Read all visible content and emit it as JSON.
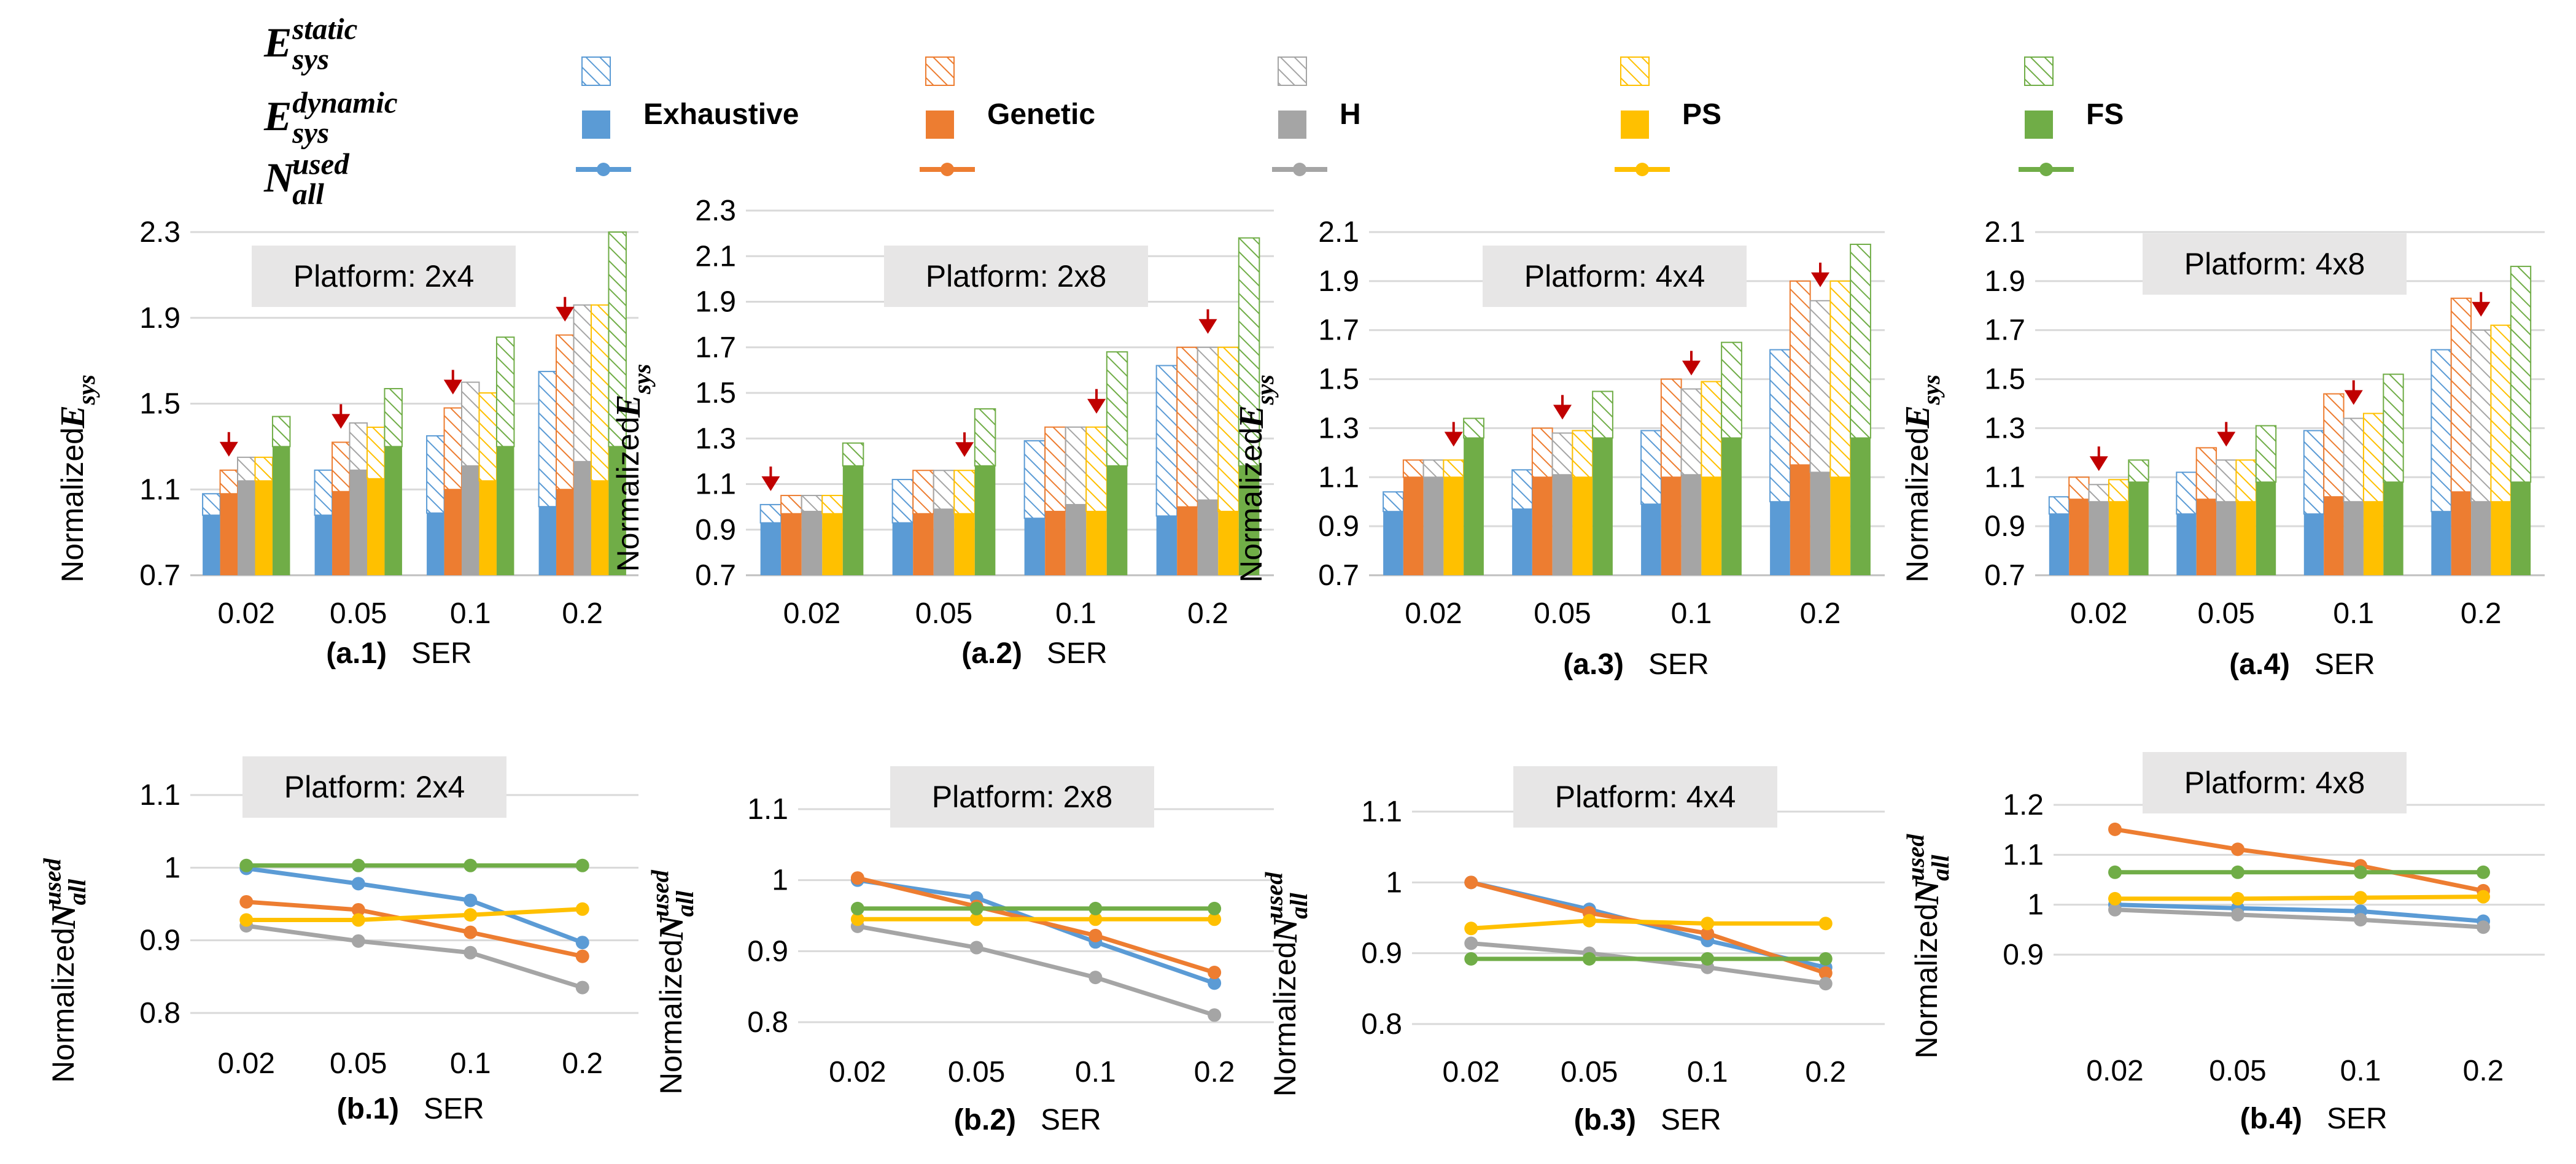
{
  "legend": {
    "row_labels": [
      {
        "base": "E",
        "sup": "static",
        "sub": "sys"
      },
      {
        "base": "E",
        "sup": "dynamic",
        "sub": "sys"
      },
      {
        "base": "N",
        "sup": "used",
        "sub": "all"
      }
    ],
    "series": [
      {
        "name": "Exhaustive",
        "color": "#5B9BD5"
      },
      {
        "name": "Genetic",
        "color": "#ED7D31"
      },
      {
        "name": "H",
        "color": "#A5A5A5"
      },
      {
        "name": "PS",
        "color": "#FFC000"
      },
      {
        "name": "FS",
        "color": "#70AD47"
      }
    ]
  },
  "marker_color": "#C00000",
  "y_label_prefix": "Normalized",
  "chart_data": [
    {
      "id": "a1",
      "type": "bar",
      "caption": "(a.1)",
      "xlabel": "SER",
      "platform": "Platform: 2x4",
      "categories": [
        "0.02",
        "0.05",
        "0.1",
        "0.2"
      ],
      "ylim": [
        0.7,
        2.3
      ],
      "yticks": [
        "0.7",
        "1.1",
        "1.5",
        "1.9",
        "2.3"
      ],
      "ylabel": {
        "base": "E",
        "sub": "sys"
      },
      "marker_series": [
        1,
        1,
        1,
        1
      ],
      "series": [
        {
          "name": "Exhaustive",
          "total": [
            1.08,
            1.19,
            1.35,
            1.65
          ],
          "dynamic": [
            0.98,
            0.98,
            0.99,
            1.02
          ]
        },
        {
          "name": "Genetic",
          "total": [
            1.19,
            1.32,
            1.48,
            1.82
          ],
          "dynamic": [
            1.08,
            1.09,
            1.1,
            1.1
          ]
        },
        {
          "name": "H",
          "total": [
            1.25,
            1.41,
            1.6,
            1.96
          ],
          "dynamic": [
            1.14,
            1.19,
            1.21,
            1.23
          ]
        },
        {
          "name": "PS",
          "total": [
            1.25,
            1.39,
            1.55,
            1.96
          ],
          "dynamic": [
            1.14,
            1.15,
            1.14,
            1.14
          ]
        },
        {
          "name": "FS",
          "total": [
            1.44,
            1.57,
            1.81,
            2.3
          ],
          "dynamic": [
            1.3,
            1.3,
            1.3,
            1.3
          ]
        }
      ]
    },
    {
      "id": "a2",
      "type": "bar",
      "caption": "(a.2)",
      "xlabel": "SER",
      "platform": "Platform: 2x8",
      "categories": [
        "0.02",
        "0.05",
        "0.1",
        "0.2"
      ],
      "ylim": [
        0.7,
        2.3
      ],
      "yticks": [
        "0.7",
        "0.9",
        "1.1",
        "1.3",
        "1.5",
        "1.7",
        "1.9",
        "2.1",
        "2.3"
      ],
      "ylabel": {
        "base": "E",
        "sub": "sys"
      },
      "marker_series": [
        0,
        3,
        3,
        2
      ],
      "series": [
        {
          "name": "Exhaustive",
          "total": [
            1.01,
            1.12,
            1.29,
            1.62
          ],
          "dynamic": [
            0.93,
            0.93,
            0.95,
            0.96
          ]
        },
        {
          "name": "Genetic",
          "total": [
            1.05,
            1.16,
            1.35,
            1.7
          ],
          "dynamic": [
            0.97,
            0.97,
            0.98,
            1.0
          ]
        },
        {
          "name": "H",
          "total": [
            1.05,
            1.16,
            1.35,
            1.7
          ],
          "dynamic": [
            0.98,
            0.99,
            1.01,
            1.03
          ]
        },
        {
          "name": "PS",
          "total": [
            1.05,
            1.16,
            1.35,
            1.7
          ],
          "dynamic": [
            0.97,
            0.97,
            0.98,
            0.98
          ]
        },
        {
          "name": "FS",
          "total": [
            1.28,
            1.43,
            1.68,
            2.18
          ],
          "dynamic": [
            1.18,
            1.18,
            1.18,
            1.18
          ]
        }
      ]
    },
    {
      "id": "a3",
      "type": "bar",
      "caption": "(a.3)",
      "xlabel": "SER",
      "platform": "Platform: 4x4",
      "categories": [
        "0.02",
        "0.05",
        "0.1",
        "0.2"
      ],
      "ylim": [
        0.7,
        2.1
      ],
      "yticks": [
        "0.7",
        "0.9",
        "1.1",
        "1.3",
        "1.5",
        "1.7",
        "1.9",
        "2.1"
      ],
      "ylabel": {
        "base": "E",
        "sub": "sys"
      },
      "marker_series": [
        3,
        2,
        2,
        2
      ],
      "series": [
        {
          "name": "Exhaustive",
          "total": [
            1.04,
            1.13,
            1.29,
            1.62
          ],
          "dynamic": [
            0.96,
            0.97,
            0.99,
            1.0
          ]
        },
        {
          "name": "Genetic",
          "total": [
            1.17,
            1.3,
            1.5,
            1.9
          ],
          "dynamic": [
            1.1,
            1.1,
            1.1,
            1.15
          ]
        },
        {
          "name": "H",
          "total": [
            1.17,
            1.28,
            1.46,
            1.82
          ],
          "dynamic": [
            1.1,
            1.11,
            1.11,
            1.12
          ]
        },
        {
          "name": "PS",
          "total": [
            1.17,
            1.29,
            1.49,
            1.9
          ],
          "dynamic": [
            1.1,
            1.1,
            1.1,
            1.1
          ]
        },
        {
          "name": "FS",
          "total": [
            1.34,
            1.45,
            1.65,
            2.05
          ],
          "dynamic": [
            1.26,
            1.26,
            1.26,
            1.26
          ]
        }
      ]
    },
    {
      "id": "a4",
      "type": "bar",
      "caption": "(a.4)",
      "xlabel": "SER",
      "platform": "Platform: 4x8",
      "categories": [
        "0.02",
        "0.05",
        "0.1",
        "0.2"
      ],
      "ylim": [
        0.7,
        2.1
      ],
      "yticks": [
        "0.7",
        "0.9",
        "1.1",
        "1.3",
        "1.5",
        "1.7",
        "1.9",
        "2.1"
      ],
      "ylabel": {
        "base": "E",
        "sub": "sys"
      },
      "marker_series": [
        2,
        2,
        2,
        2
      ],
      "series": [
        {
          "name": "Exhaustive",
          "total": [
            1.02,
            1.12,
            1.29,
            1.62
          ],
          "dynamic": [
            0.95,
            0.95,
            0.95,
            0.96
          ]
        },
        {
          "name": "Genetic",
          "total": [
            1.1,
            1.22,
            1.44,
            1.83
          ],
          "dynamic": [
            1.01,
            1.01,
            1.02,
            1.04
          ]
        },
        {
          "name": "H",
          "total": [
            1.07,
            1.17,
            1.34,
            1.7
          ],
          "dynamic": [
            1.0,
            1.0,
            1.0,
            1.0
          ]
        },
        {
          "name": "PS",
          "total": [
            1.09,
            1.17,
            1.36,
            1.72
          ],
          "dynamic": [
            1.0,
            1.0,
            1.0,
            1.0
          ]
        },
        {
          "name": "FS",
          "total": [
            1.17,
            1.31,
            1.52,
            1.96
          ],
          "dynamic": [
            1.08,
            1.08,
            1.08,
            1.08
          ]
        }
      ]
    },
    {
      "id": "b1",
      "type": "line",
      "caption": "(b.1)",
      "xlabel": "SER",
      "platform": "Platform: 2x4",
      "categories": [
        "0.02",
        "0.05",
        "0.1",
        "0.2"
      ],
      "ylim": [
        0.8,
        1.1
      ],
      "yticks": [
        "0.8",
        "0.9",
        "1",
        "1.1"
      ],
      "ylabel": {
        "base": "N",
        "sup": "used",
        "sub": "all"
      },
      "series": [
        {
          "name": "Exhaustive",
          "values": [
            0.999,
            0.978,
            0.955,
            0.897
          ]
        },
        {
          "name": "Genetic",
          "values": [
            0.953,
            0.942,
            0.911,
            0.878
          ]
        },
        {
          "name": "H",
          "values": [
            0.92,
            0.899,
            0.883,
            0.835
          ]
        },
        {
          "name": "PS",
          "values": [
            0.928,
            0.928,
            0.935,
            0.943
          ]
        },
        {
          "name": "FS",
          "values": [
            1.003,
            1.003,
            1.003,
            1.003
          ]
        }
      ]
    },
    {
      "id": "b2",
      "type": "line",
      "caption": "(b.2)",
      "xlabel": "SER",
      "platform": "Platform: 2x8",
      "categories": [
        "0.02",
        "0.05",
        "0.1",
        "0.2"
      ],
      "ylim": [
        0.8,
        1.1
      ],
      "yticks": [
        "0.8",
        "0.9",
        "1",
        "1.1"
      ],
      "ylabel": {
        "base": "N",
        "sup": "used",
        "sub": "all"
      },
      "series": [
        {
          "name": "Exhaustive",
          "values": [
            1.0,
            0.975,
            0.913,
            0.855
          ]
        },
        {
          "name": "Genetic",
          "values": [
            1.003,
            0.963,
            0.922,
            0.87
          ]
        },
        {
          "name": "H",
          "values": [
            0.935,
            0.905,
            0.863,
            0.81
          ]
        },
        {
          "name": "PS",
          "values": [
            0.945,
            0.945,
            0.945,
            0.945
          ]
        },
        {
          "name": "FS",
          "values": [
            0.96,
            0.96,
            0.96,
            0.96
          ]
        }
      ]
    },
    {
      "id": "b3",
      "type": "line",
      "caption": "(b.3)",
      "xlabel": "SER",
      "platform": "Platform: 4x4",
      "categories": [
        "0.02",
        "0.05",
        "0.1",
        "0.2"
      ],
      "ylim": [
        0.8,
        1.1
      ],
      "yticks": [
        "0.8",
        "0.9",
        "1",
        "1.1"
      ],
      "ylabel": {
        "base": "N",
        "sup": "used",
        "sub": "all"
      },
      "series": [
        {
          "name": "Exhaustive",
          "values": [
            1.0,
            0.962,
            0.918,
            0.88
          ]
        },
        {
          "name": "Genetic",
          "values": [
            1.0,
            0.957,
            0.928,
            0.872
          ]
        },
        {
          "name": "H",
          "values": [
            0.914,
            0.9,
            0.88,
            0.857
          ]
        },
        {
          "name": "PS",
          "values": [
            0.935,
            0.946,
            0.942,
            0.942
          ]
        },
        {
          "name": "FS",
          "values": [
            0.892,
            0.892,
            0.892,
            0.892
          ]
        }
      ]
    },
    {
      "id": "b4",
      "type": "line",
      "caption": "(b.4)",
      "xlabel": "SER",
      "platform": "Platform: 4x8",
      "categories": [
        "0.02",
        "0.05",
        "0.1",
        "0.2"
      ],
      "ylim": [
        0.9,
        1.2
      ],
      "yticks": [
        "0.9",
        "1",
        "1.1",
        "1.2"
      ],
      "ylabel": {
        "base": "N",
        "sup": "used",
        "sub": "all"
      },
      "series": [
        {
          "name": "Exhaustive",
          "values": [
            1.0,
            0.993,
            0.987,
            0.967
          ]
        },
        {
          "name": "Genetic",
          "values": [
            1.151,
            1.111,
            1.078,
            1.028
          ]
        },
        {
          "name": "H",
          "values": [
            0.99,
            0.98,
            0.97,
            0.955
          ]
        },
        {
          "name": "PS",
          "values": [
            1.012,
            1.012,
            1.014,
            1.016
          ]
        },
        {
          "name": "FS",
          "values": [
            1.065,
            1.065,
            1.065,
            1.065
          ]
        }
      ]
    }
  ]
}
